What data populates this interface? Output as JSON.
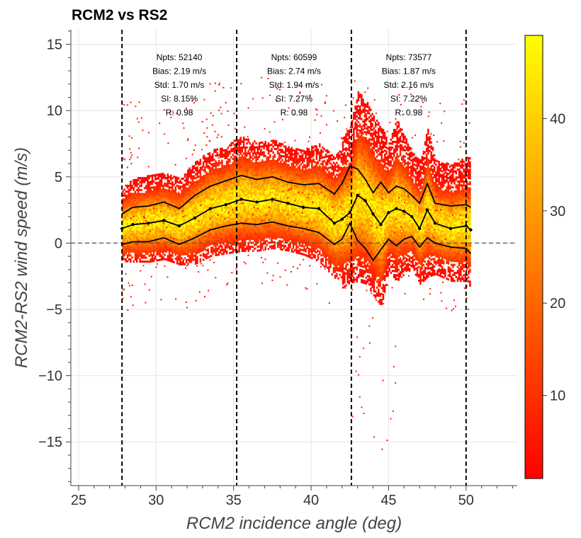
{
  "chart_data": {
    "type": "heatmap",
    "title": "RCM2 vs RS2",
    "xlabel": "RCM2 incidence angle (deg)",
    "ylabel": "RCM2-RS2 wind speed (m/s)",
    "xlim": [
      24.5,
      53.3
    ],
    "ylim": [
      -18.3,
      16.1
    ],
    "xticks": [
      25,
      30,
      35,
      40,
      45,
      50
    ],
    "yticks": [
      -15,
      -10,
      -5,
      0,
      5,
      10,
      15
    ],
    "xtick_labels": [
      "25",
      "30",
      "35",
      "40",
      "45",
      "50"
    ],
    "ytick_labels": [
      "−15",
      "−10",
      "−5",
      "0",
      "5",
      "10",
      "15"
    ],
    "grid": true,
    "zero_line": 0,
    "angle_boundaries": [
      27.8,
      35.2,
      42.6,
      50.0
    ],
    "colorbar": {
      "colormap": "autumn_r",
      "range": [
        1,
        49
      ],
      "ticks": [
        10,
        20,
        30,
        40
      ],
      "tick_labels": [
        "10",
        "20",
        "30",
        "40"
      ]
    },
    "stats": [
      {
        "npts": "Npts: 52140",
        "bias": "Bias: 2.19 m/s",
        "std": "Std: 1.70 m/s",
        "si": "SI: 8.15%",
        "r": "R: 0.98"
      },
      {
        "npts": "Npts: 60599",
        "bias": "Bias: 2.74 m/s",
        "std": "Std: 1.94 m/s",
        "si": "SI: 7.27%",
        "r": "R: 0.98"
      },
      {
        "npts": "Npts: 73577",
        "bias": "Bias: 1.87 m/s",
        "std": "Std: 2.16 m/s",
        "si": "SI: 7.22%",
        "r": "R: 0.98"
      }
    ],
    "series": [
      {
        "role": "mean",
        "x": [
          27.8,
          28.5,
          29.5,
          30.5,
          31.5,
          32.5,
          33.5,
          34.5,
          35.5,
          36.5,
          37.5,
          38.5,
          39.5,
          40.5,
          41.5,
          42.0,
          42.5,
          43.0,
          43.5,
          44.0,
          44.5,
          45.0,
          45.5,
          46.0,
          46.5,
          47.0,
          47.5,
          48.0,
          49.0,
          50.0,
          50.3
        ],
        "y": [
          1.1,
          1.4,
          1.5,
          1.7,
          1.3,
          1.9,
          2.6,
          2.9,
          3.3,
          3.1,
          3.3,
          3.0,
          2.7,
          2.6,
          1.5,
          1.8,
          2.3,
          3.6,
          3.2,
          2.2,
          1.4,
          2.3,
          2.6,
          2.4,
          2.0,
          1.1,
          2.5,
          1.5,
          1.1,
          1.3,
          1.0
        ]
      },
      {
        "role": "mean_plus_std",
        "x": [
          27.8,
          28.5,
          29.5,
          30.5,
          31.5,
          32.5,
          33.5,
          34.5,
          35.5,
          36.5,
          37.5,
          38.5,
          39.5,
          40.5,
          41.5,
          42.0,
          42.5,
          43.0,
          43.5,
          44.0,
          44.5,
          45.0,
          45.5,
          46.0,
          46.5,
          47.0,
          47.5,
          48.0,
          49.0,
          50.0,
          50.3
        ],
        "y": [
          2.2,
          2.7,
          2.8,
          3.1,
          2.6,
          3.6,
          4.3,
          4.7,
          5.1,
          4.8,
          5.0,
          4.6,
          4.4,
          4.5,
          3.7,
          4.5,
          5.8,
          5.6,
          4.8,
          3.8,
          4.6,
          3.8,
          4.3,
          4.1,
          3.6,
          3.0,
          4.5,
          3.0,
          2.8,
          2.9,
          2.7
        ]
      },
      {
        "role": "mean_minus_std",
        "x": [
          27.8,
          28.5,
          29.5,
          30.5,
          31.5,
          32.5,
          33.5,
          34.5,
          35.5,
          36.5,
          37.5,
          38.5,
          39.5,
          40.5,
          41.5,
          42.0,
          42.5,
          43.0,
          43.5,
          44.0,
          44.5,
          45.0,
          45.5,
          46.0,
          46.5,
          47.0,
          47.5,
          48.0,
          49.0,
          50.0,
          50.3
        ],
        "y": [
          -0.1,
          0.1,
          0.1,
          0.4,
          -0.1,
          0.4,
          1.0,
          1.3,
          1.5,
          1.4,
          1.6,
          1.3,
          1.1,
          0.8,
          -0.1,
          0.3,
          1.5,
          0.2,
          -0.4,
          -1.3,
          -0.5,
          0.3,
          -0.2,
          0.3,
          0.5,
          -0.3,
          0.4,
          0.0,
          -0.3,
          -0.4,
          -0.8
        ]
      }
    ]
  }
}
